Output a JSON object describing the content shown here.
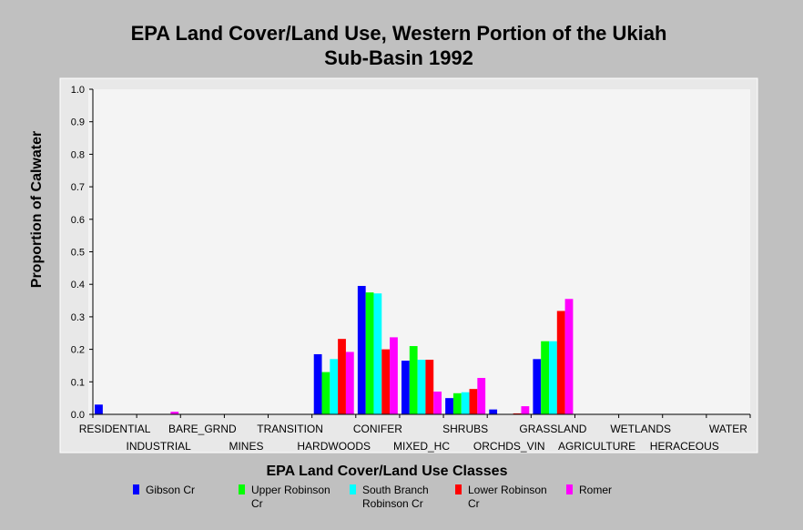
{
  "chart_data": {
    "type": "bar",
    "title": "EPA Land Cover/Land Use, Western Portion of the Ukiah",
    "subtitle": "Sub-Basin 1992",
    "xlabel": "EPA Land Cover/Land Use Classes",
    "ylabel": "Proportion of Calwater",
    "ylim": [
      0,
      1.0
    ],
    "yticks": [
      "0.0",
      "0.1",
      "0.2",
      "0.3",
      "0.4",
      "0.5",
      "0.6",
      "0.7",
      "0.8",
      "0.9",
      "1.0"
    ],
    "grid": false,
    "legend_position": "bottom",
    "categories": [
      "RESIDENTIAL",
      "INDUSTRIAL",
      "BARE_GRND",
      "MINES",
      "TRANSITION",
      "HARDWOODS",
      "CONIFER",
      "MIXED_HC",
      "SHRUBS",
      "ORCHDS_VIN",
      "GRASSLAND",
      "AGRICULTURE",
      "WETLANDS",
      "HERACEOUS",
      "WATER"
    ],
    "series": [
      {
        "name": "Gibson Cr",
        "legend_lines": [
          "Gibson Cr"
        ],
        "color": "#0000ff",
        "values": [
          0.03,
          0,
          0,
          0,
          0,
          0.185,
          0.395,
          0.165,
          0.05,
          0.015,
          0.17,
          0,
          0,
          0,
          0
        ]
      },
      {
        "name": "Upper Robinson Cr",
        "legend_lines": [
          "Upper Robinson",
          "Cr"
        ],
        "color": "#00ff00",
        "values": [
          0,
          0,
          0,
          0,
          0,
          0.13,
          0.375,
          0.21,
          0.065,
          0,
          0.225,
          0,
          0,
          0,
          0
        ]
      },
      {
        "name": "South Branch Robinson Cr",
        "legend_lines": [
          "South Branch",
          "Robinson Cr"
        ],
        "color": "#00ffff",
        "values": [
          0,
          0,
          0,
          0,
          0,
          0.17,
          0.372,
          0.168,
          0.068,
          0,
          0.225,
          0,
          0,
          0,
          0
        ]
      },
      {
        "name": "Lower Robinson Cr",
        "legend_lines": [
          "Lower Robinson",
          "Cr"
        ],
        "color": "#ff0000",
        "values": [
          0,
          0,
          0,
          0,
          0,
          0.232,
          0.2,
          0.168,
          0.078,
          0.003,
          0.318,
          0,
          0,
          0,
          0
        ]
      },
      {
        "name": "Romer",
        "legend_lines": [
          "Romer"
        ],
        "color": "#ff00ff",
        "values": [
          0,
          0.008,
          0,
          0,
          0,
          0.192,
          0.237,
          0.07,
          0.112,
          0.025,
          0.355,
          0,
          0,
          0,
          0
        ]
      }
    ]
  }
}
